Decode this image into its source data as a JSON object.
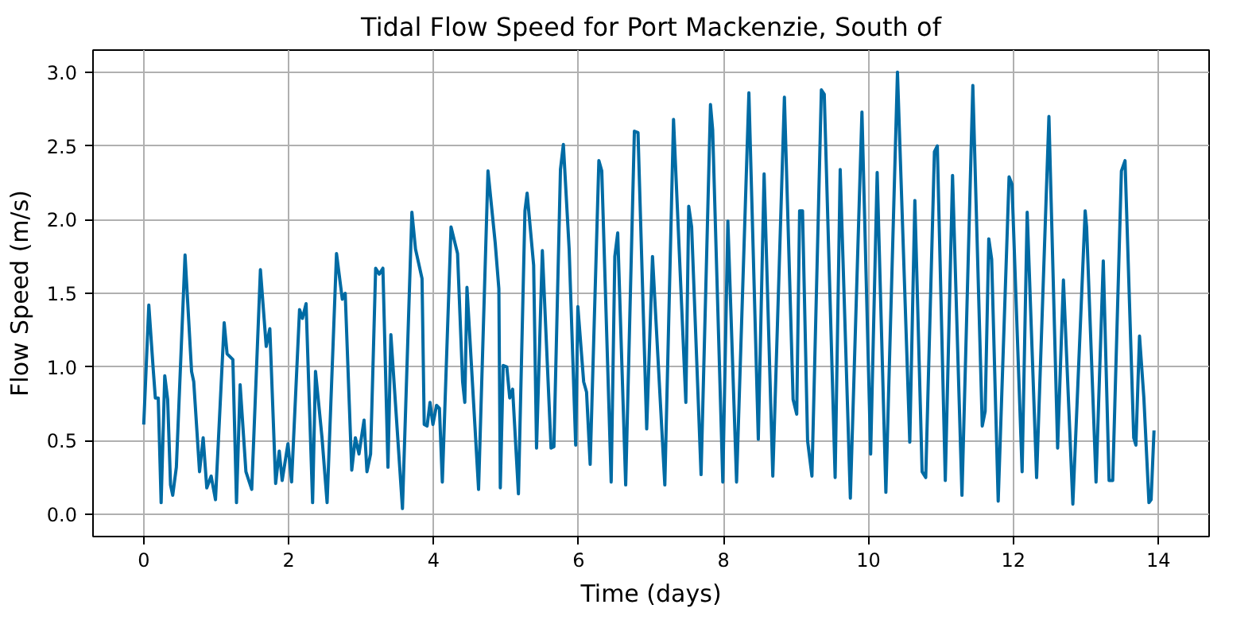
{
  "chart_data": {
    "type": "line",
    "title": "Tidal Flow Speed for Port Mackenzie, South of",
    "xlabel": "Time (days)",
    "ylabel": "Flow Speed (m/s)",
    "xlim": [
      -0.7,
      14.7
    ],
    "ylim": [
      -0.15,
      3.15
    ],
    "xticks": [
      0,
      2,
      4,
      6,
      8,
      10,
      12,
      14
    ],
    "yticks": [
      {
        "value": 0,
        "label": "0.0"
      },
      0.5,
      {
        "value": 1,
        "label": "1.0"
      },
      1.5,
      {
        "value": 2,
        "label": "2.0"
      },
      2.5,
      {
        "value": 3,
        "label": "3.0"
      }
    ],
    "grid": true,
    "line_style": "solid",
    "series": [
      {
        "color": "#006ba4",
        "x": [
          0.0,
          0.07,
          0.13,
          0.16,
          0.2,
          0.24,
          0.29,
          0.33,
          0.37,
          0.4,
          0.45,
          0.57,
          0.66,
          0.69,
          0.77,
          0.82,
          0.87,
          0.93,
          0.99,
          1.11,
          1.15,
          1.23,
          1.28,
          1.33,
          1.41,
          1.49,
          1.61,
          1.69,
          1.74,
          1.82,
          1.87,
          1.91,
          1.99,
          2.04,
          2.15,
          2.19,
          2.24,
          2.33,
          2.37,
          2.46,
          2.53,
          2.66,
          2.74,
          2.78,
          2.87,
          2.92,
          2.97,
          3.04,
          3.08,
          3.13,
          3.2,
          3.25,
          3.3,
          3.37,
          3.41,
          3.57,
          3.7,
          3.75,
          3.84,
          3.87,
          3.91,
          3.95,
          3.99,
          4.04,
          4.08,
          4.12,
          4.24,
          4.33,
          4.4,
          4.43,
          4.46,
          4.62,
          4.75,
          4.85,
          4.9,
          4.92,
          4.96,
          5.01,
          5.05,
          5.09,
          5.17,
          5.26,
          5.29,
          5.38,
          5.42,
          5.5,
          5.62,
          5.66,
          5.75,
          5.79,
          5.87,
          5.96,
          5.99,
          6.07,
          6.11,
          6.16,
          6.28,
          6.32,
          6.45,
          6.5,
          6.54,
          6.65,
          6.77,
          6.82,
          6.94,
          7.02,
          7.19,
          7.31,
          7.48,
          7.52,
          7.56,
          7.69,
          7.82,
          7.85,
          7.99,
          8.06,
          8.18,
          8.35,
          8.48,
          8.56,
          8.68,
          8.84,
          8.96,
          9.01,
          9.05,
          9.09,
          9.16,
          9.22,
          9.35,
          9.39,
          9.54,
          9.61,
          9.75,
          9.91,
          10.03,
          10.12,
          10.24,
          10.4,
          10.57,
          10.64,
          10.74,
          10.79,
          10.91,
          10.95,
          11.06,
          11.16,
          11.29,
          11.44,
          11.57,
          11.61,
          11.66,
          11.7,
          11.79,
          11.94,
          11.98,
          12.12,
          12.19,
          12.32,
          12.49,
          12.61,
          12.69,
          12.82,
          12.99,
          13.01,
          13.14,
          13.24,
          13.32,
          13.37,
          13.49,
          13.54,
          13.66,
          13.69,
          13.74,
          13.8,
          13.87,
          13.9,
          13.94
        ],
        "values": [
          0.61,
          1.42,
          0.99,
          0.79,
          0.79,
          0.08,
          0.94,
          0.78,
          0.2,
          0.13,
          0.32,
          1.76,
          0.97,
          0.9,
          0.29,
          0.52,
          0.18,
          0.26,
          0.1,
          1.3,
          1.09,
          1.05,
          0.08,
          0.88,
          0.29,
          0.17,
          1.66,
          1.14,
          1.26,
          0.21,
          0.43,
          0.23,
          0.48,
          0.22,
          1.39,
          1.33,
          1.43,
          0.08,
          0.97,
          0.52,
          0.08,
          1.77,
          1.46,
          1.5,
          0.3,
          0.52,
          0.41,
          0.64,
          0.29,
          0.41,
          1.67,
          1.63,
          1.67,
          0.32,
          1.22,
          0.04,
          2.05,
          1.8,
          1.6,
          0.61,
          0.6,
          0.76,
          0.61,
          0.74,
          0.72,
          0.22,
          1.95,
          1.77,
          0.9,
          0.76,
          1.54,
          0.17,
          2.33,
          1.84,
          1.53,
          0.18,
          1.01,
          1.0,
          0.79,
          0.85,
          0.14,
          2.06,
          2.18,
          1.69,
          0.45,
          1.79,
          0.45,
          0.46,
          2.34,
          2.51,
          1.8,
          0.47,
          1.41,
          0.9,
          0.83,
          0.34,
          2.4,
          2.33,
          0.22,
          1.75,
          1.91,
          0.2,
          2.6,
          2.59,
          0.58,
          1.75,
          0.2,
          2.68,
          0.76,
          2.09,
          1.95,
          0.27,
          2.78,
          2.61,
          0.22,
          1.99,
          0.22,
          2.86,
          0.51,
          2.31,
          0.26,
          2.83,
          0.78,
          0.68,
          2.06,
          2.06,
          0.5,
          0.26,
          2.88,
          2.85,
          0.25,
          2.34,
          0.11,
          2.73,
          0.41,
          2.32,
          0.15,
          3.0,
          0.49,
          2.13,
          0.29,
          0.25,
          2.46,
          2.5,
          0.23,
          2.3,
          0.13,
          2.91,
          0.6,
          0.7,
          1.87,
          1.73,
          0.09,
          2.29,
          2.24,
          0.29,
          2.05,
          0.25,
          2.7,
          0.45,
          1.59,
          0.07,
          2.06,
          1.95,
          0.22,
          1.72,
          0.23,
          0.23,
          2.33,
          2.4,
          0.52,
          0.47,
          1.21,
          0.79,
          0.08,
          0.1,
          0.57
        ]
      }
    ]
  }
}
